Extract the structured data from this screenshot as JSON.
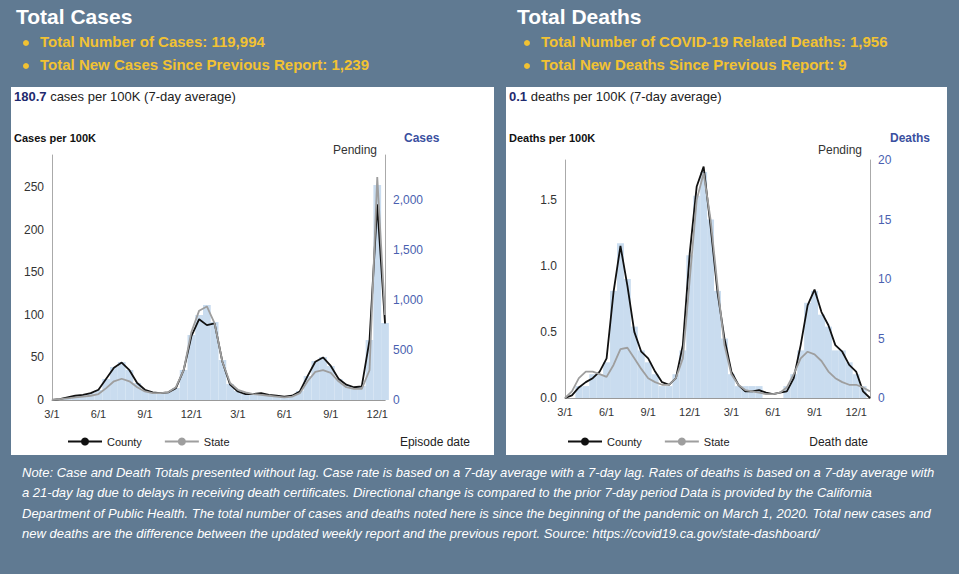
{
  "chart_data": [
    {
      "type": "line",
      "title": "Total Cases",
      "bullets": [
        "Total Number of Cases: 119,994",
        "Total New Cases Since Previous Report: 1,239"
      ],
      "subtitle": "180.7 cases per 100K (7-day average)",
      "ylabel": "Cases per 100K",
      "y2label": "Cases",
      "xlabel": "Episode date",
      "annotations": [
        "Pending"
      ],
      "categories": [
        "3/1",
        null,
        null,
        null,
        null,
        null,
        "6/1",
        null,
        null,
        null,
        null,
        null,
        "9/1",
        null,
        null,
        null,
        null,
        null,
        "12/1",
        null,
        null,
        null,
        null,
        null,
        "3/1",
        null,
        null,
        null,
        null,
        null,
        "6/1",
        null,
        null,
        null,
        null,
        null,
        "9/1",
        null,
        null,
        null,
        null,
        null,
        "12/1",
        null
      ],
      "series": [
        {
          "name": "County",
          "color": "#111111",
          "values": [
            0,
            1,
            3,
            5,
            6,
            8,
            12,
            25,
            38,
            44,
            35,
            20,
            12,
            9,
            8,
            9,
            14,
            35,
            75,
            95,
            88,
            90,
            45,
            18,
            10,
            7,
            7,
            8,
            6,
            5,
            4,
            5,
            10,
            28,
            45,
            50,
            40,
            25,
            18,
            15,
            16,
            70,
            230,
            90
          ]
        },
        {
          "name": "State",
          "color": "#9e9e9e",
          "values": [
            0,
            1,
            2,
            3,
            4,
            5,
            7,
            14,
            22,
            25,
            22,
            15,
            10,
            8,
            8,
            9,
            15,
            35,
            80,
            105,
            110,
            90,
            45,
            20,
            12,
            9,
            7,
            6,
            5,
            4,
            3,
            4,
            8,
            22,
            33,
            35,
            32,
            22,
            15,
            13,
            13,
            35,
            262,
            100
          ]
        },
        {
          "type": "bar",
          "axis": "y2",
          "color": "#c9dcef",
          "values": [
            0,
            8,
            25,
            40,
            50,
            70,
            100,
            210,
            330,
            380,
            300,
            170,
            100,
            75,
            70,
            80,
            120,
            300,
            650,
            850,
            950,
            780,
            400,
            160,
            90,
            60,
            60,
            70,
            50,
            45,
            35,
            45,
            90,
            240,
            390,
            430,
            340,
            210,
            150,
            130,
            140,
            600,
            2150,
            770
          ]
        }
      ],
      "ylim": [
        0,
        288
      ],
      "yticks": [
        0,
        50,
        100,
        150,
        200,
        250
      ],
      "y2lim": [
        0,
        2450
      ],
      "y2ticks": [
        0,
        500,
        {
          "value": 1000,
          "label": "1,000"
        },
        {
          "value": 1500,
          "label": "1,500"
        },
        {
          "value": 2000,
          "label": "2,000"
        }
      ],
      "grid": false,
      "legend": "bottom"
    },
    {
      "type": "line",
      "title": "Total Deaths",
      "bullets": [
        "Total Number of COVID-19 Related Deaths: 1,956",
        "Total New Deaths Since Previous Report: 9"
      ],
      "subtitle": "0.1 deaths per 100K (7-day average)",
      "ylabel": "Deaths per 100K",
      "y2label": "Deaths",
      "xlabel": "Death date",
      "annotations": [
        "Pending"
      ],
      "categories": [
        "3/1",
        null,
        null,
        null,
        null,
        null,
        "6/1",
        null,
        null,
        null,
        null,
        null,
        "9/1",
        null,
        null,
        null,
        null,
        null,
        "12/1",
        null,
        null,
        null,
        null,
        null,
        "3/1",
        null,
        null,
        null,
        null,
        null,
        "6/1",
        null,
        null,
        null,
        null,
        null,
        "9/1",
        null,
        null,
        null,
        null,
        null,
        "12/1",
        null,
        null
      ],
      "series": [
        {
          "name": "County",
          "color": "#111111",
          "values": [
            0,
            0.02,
            0.08,
            0.12,
            0.15,
            0.2,
            0.3,
            0.8,
            1.15,
            0.85,
            0.5,
            0.35,
            0.3,
            0.2,
            0.12,
            0.1,
            0.15,
            0.4,
            1.1,
            1.6,
            1.75,
            1.3,
            0.8,
            0.45,
            0.2,
            0.1,
            0.05,
            0.05,
            0.06,
            0.04,
            0.03,
            0.04,
            0.05,
            0.15,
            0.4,
            0.7,
            0.82,
            0.65,
            0.55,
            0.4,
            0.35,
            0.25,
            0.2,
            0.05,
            0
          ]
        },
        {
          "name": "State",
          "color": "#9e9e9e",
          "values": [
            0,
            0.05,
            0.15,
            0.2,
            0.2,
            0.18,
            0.16,
            0.25,
            0.37,
            0.38,
            0.3,
            0.22,
            0.15,
            0.12,
            0.1,
            0.1,
            0.15,
            0.3,
            0.9,
            1.5,
            1.7,
            1.35,
            0.85,
            0.4,
            0.18,
            0.1,
            0.06,
            0.05,
            0.04,
            0.03,
            0.03,
            0.04,
            0.08,
            0.18,
            0.3,
            0.35,
            0.33,
            0.28,
            0.2,
            0.15,
            0.12,
            0.1,
            0.1,
            0.08,
            0.05
          ]
        },
        {
          "type": "bar",
          "axis": "y2",
          "color": "#c9dcef",
          "values": [
            0,
            0,
            1,
            1,
            2,
            2,
            3,
            9,
            13,
            10,
            6,
            4,
            3,
            2,
            1,
            1,
            2,
            4,
            12,
            17,
            19,
            15,
            9,
            5,
            2,
            1,
            1,
            1,
            1,
            0,
            0,
            0,
            1,
            2,
            4,
            8,
            9,
            7,
            6,
            4,
            4,
            3,
            2,
            1,
            0
          ]
        }
      ],
      "ylim": [
        0,
        1.8
      ],
      "yticks": [
        {
          "value": 0,
          "label": "0.0"
        },
        0.5,
        {
          "value": 1,
          "label": "1.0"
        },
        1.5
      ],
      "y2lim": [
        0,
        20
      ],
      "y2ticks": [
        0,
        5,
        10,
        15,
        20
      ],
      "grid": false,
      "legend": "bottom"
    }
  ],
  "note": "Note: Case and Death Totals presented without lag. Case rate is based on a 7-day average with a 7-day lag. Rates of deaths is based on a 7-day average with a 21-day lag due to delays in receiving death certificates. Directional change is compared to the prior 7-day period Data is provided by the California Department of Public Health. The total number of cases and deaths noted here is since the beginning of the pandemic on March 1, 2020. Total new cases and new deaths are the difference between the updated weekly report and the previous report. Source: https://covid19.ca.gov/state-dashboard/"
}
